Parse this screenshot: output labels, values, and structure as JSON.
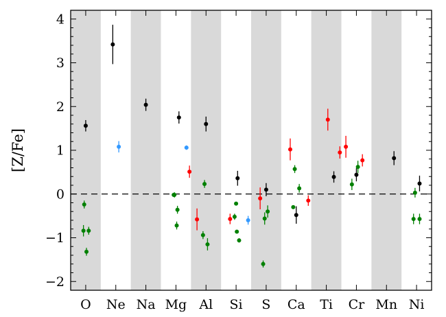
{
  "chart_data": {
    "type": "scatter",
    "title": "",
    "xlabel": "",
    "ylabel": "[Z/Fe]",
    "categories": [
      "O",
      "Ne",
      "Na",
      "Mg",
      "Al",
      "Si",
      "S",
      "Ca",
      "Ti",
      "Cr",
      "Mn",
      "Ni"
    ],
    "shaded_categories": [
      "O",
      "Na",
      "Al",
      "S",
      "Ti",
      "Mn"
    ],
    "ylim": [
      -2.2,
      4.2
    ],
    "yticks": [
      -2,
      -1,
      0,
      1,
      2,
      3,
      4
    ],
    "ytick_labels": [
      "−2",
      "−1",
      "0",
      "1",
      "2",
      "3",
      "4"
    ],
    "reference_line": {
      "y": 0,
      "style": "dashed"
    },
    "grid": false,
    "legend": "none",
    "colors": {
      "black": "#000000",
      "blue": "#3399ff",
      "red": "#ff0000",
      "green": "#008000",
      "shade": "#d9d9d9"
    },
    "series": [
      {
        "color": "black",
        "points": [
          {
            "cat": "O",
            "dx": 0.0,
            "y": 1.56,
            "err": 0.13
          },
          {
            "cat": "Ne",
            "dx": -0.2,
            "y": 3.42,
            "err": 0.45
          },
          {
            "cat": "Na",
            "dx": 0.0,
            "y": 2.04,
            "err": 0.14
          },
          {
            "cat": "Mg",
            "dx": 0.2,
            "y": 1.75,
            "err": 0.14
          },
          {
            "cat": "Al",
            "dx": 0.0,
            "y": 1.6,
            "err": 0.17
          },
          {
            "cat": "Si",
            "dx": 0.1,
            "y": 0.36,
            "err": 0.17
          },
          {
            "cat": "S",
            "dx": 0.0,
            "y": 0.1,
            "err": 0.15
          },
          {
            "cat": "Ca",
            "dx": 0.0,
            "y": -0.48,
            "err": 0.2
          },
          {
            "cat": "Ti",
            "dx": 0.5,
            "y": 0.39,
            "err": 0.13
          },
          {
            "cat": "Cr",
            "dx": 0.0,
            "y": 0.44,
            "err": 0.15
          },
          {
            "cat": "Mn",
            "dx": 0.5,
            "y": 0.82,
            "err": 0.16
          },
          {
            "cat": "Ni",
            "dx": 0.2,
            "y": 0.24,
            "err": 0.18
          }
        ]
      },
      {
        "color": "blue",
        "points": [
          {
            "cat": "Ne",
            "dx": 0.2,
            "y": 1.08,
            "err": 0.13
          },
          {
            "cat": "Mg",
            "dx": 0.7,
            "y": 1.06,
            "err": 0.05
          },
          {
            "cat": "Si",
            "dx": 0.8,
            "y": -0.6,
            "err": 0.1
          }
        ]
      },
      {
        "color": "red",
        "points": [
          {
            "cat": "Mg",
            "dx": 0.9,
            "y": 0.51,
            "err": 0.14
          },
          {
            "cat": "Al",
            "dx": -0.6,
            "y": -0.58,
            "err": 0.25
          },
          {
            "cat": "Si",
            "dx": -0.4,
            "y": -0.57,
            "err": 0.12
          },
          {
            "cat": "S",
            "dx": -0.4,
            "y": -0.1,
            "err": 0.25
          },
          {
            "cat": "Ca",
            "dx": -0.4,
            "y": 1.02,
            "err": 0.25
          },
          {
            "cat": "Ca",
            "dx": 0.8,
            "y": -0.15,
            "err": 0.12
          },
          {
            "cat": "Ti",
            "dx": 0.1,
            "y": 1.7,
            "err": 0.25
          },
          {
            "cat": "Ti",
            "dx": 0.9,
            "y": 0.95,
            "err": 0.14
          },
          {
            "cat": "Cr",
            "dx": -0.7,
            "y": 1.08,
            "err": 0.25
          },
          {
            "cat": "Cr",
            "dx": 0.4,
            "y": 0.77,
            "err": 0.14
          }
        ]
      },
      {
        "color": "green",
        "points": [
          {
            "cat": "O",
            "dx": -0.1,
            "y": -0.24,
            "err": 0.09
          },
          {
            "cat": "O",
            "dx": -0.15,
            "y": -0.84,
            "err": 0.13
          },
          {
            "cat": "O",
            "dx": 0.05,
            "y": -1.32,
            "err": 0.09
          },
          {
            "cat": "O",
            "dx": 0.2,
            "y": -0.84,
            "err": 0.09
          },
          {
            "cat": "Mg",
            "dx": -0.15,
            "y": -0.02,
            "err": 0.04
          },
          {
            "cat": "Mg",
            "dx": -0.1,
            "y": -0.02,
            "err": 0.06
          },
          {
            "cat": "Mg",
            "dx": 0.05,
            "y": -0.72,
            "err": 0.09
          },
          {
            "cat": "Mg",
            "dx": 0.1,
            "y": -0.36,
            "err": 0.09
          },
          {
            "cat": "Al",
            "dx": -0.2,
            "y": -0.94,
            "err": 0.09
          },
          {
            "cat": "Al",
            "dx": -0.1,
            "y": 0.23,
            "err": 0.09
          },
          {
            "cat": "Al",
            "dx": 0.1,
            "y": -1.15,
            "err": 0.14
          },
          {
            "cat": "Si",
            "dx": -0.1,
            "y": -0.52,
            "err": 0.07
          },
          {
            "cat": "Si",
            "dx": 0.0,
            "y": -0.22,
            "err": 0.04
          },
          {
            "cat": "Si",
            "dx": 0.05,
            "y": -0.86,
            "err": 0.04
          },
          {
            "cat": "Si",
            "dx": 0.2,
            "y": -1.06,
            "err": 0.05
          },
          {
            "cat": "S",
            "dx": -0.2,
            "y": -1.6,
            "err": 0.08
          },
          {
            "cat": "S",
            "dx": -0.1,
            "y": -0.56,
            "err": 0.14
          },
          {
            "cat": "S",
            "dx": 0.1,
            "y": -0.4,
            "err": 0.14
          },
          {
            "cat": "Ca",
            "dx": -0.2,
            "y": -0.3,
            "err": 0.04
          },
          {
            "cat": "Ca",
            "dx": -0.1,
            "y": 0.57,
            "err": 0.09
          },
          {
            "cat": "Ca",
            "dx": 0.2,
            "y": 0.13,
            "err": 0.1
          },
          {
            "cat": "Cr",
            "dx": -0.3,
            "y": 0.22,
            "err": 0.13
          },
          {
            "cat": "Cr",
            "dx": 0.1,
            "y": 0.62,
            "err": 0.14
          },
          {
            "cat": "Ni",
            "dx": -0.1,
            "y": 0.03,
            "err": 0.11
          },
          {
            "cat": "Ni",
            "dx": -0.2,
            "y": -0.57,
            "err": 0.12
          },
          {
            "cat": "Ni",
            "dx": 0.2,
            "y": -0.57,
            "err": 0.12
          }
        ]
      }
    ]
  }
}
